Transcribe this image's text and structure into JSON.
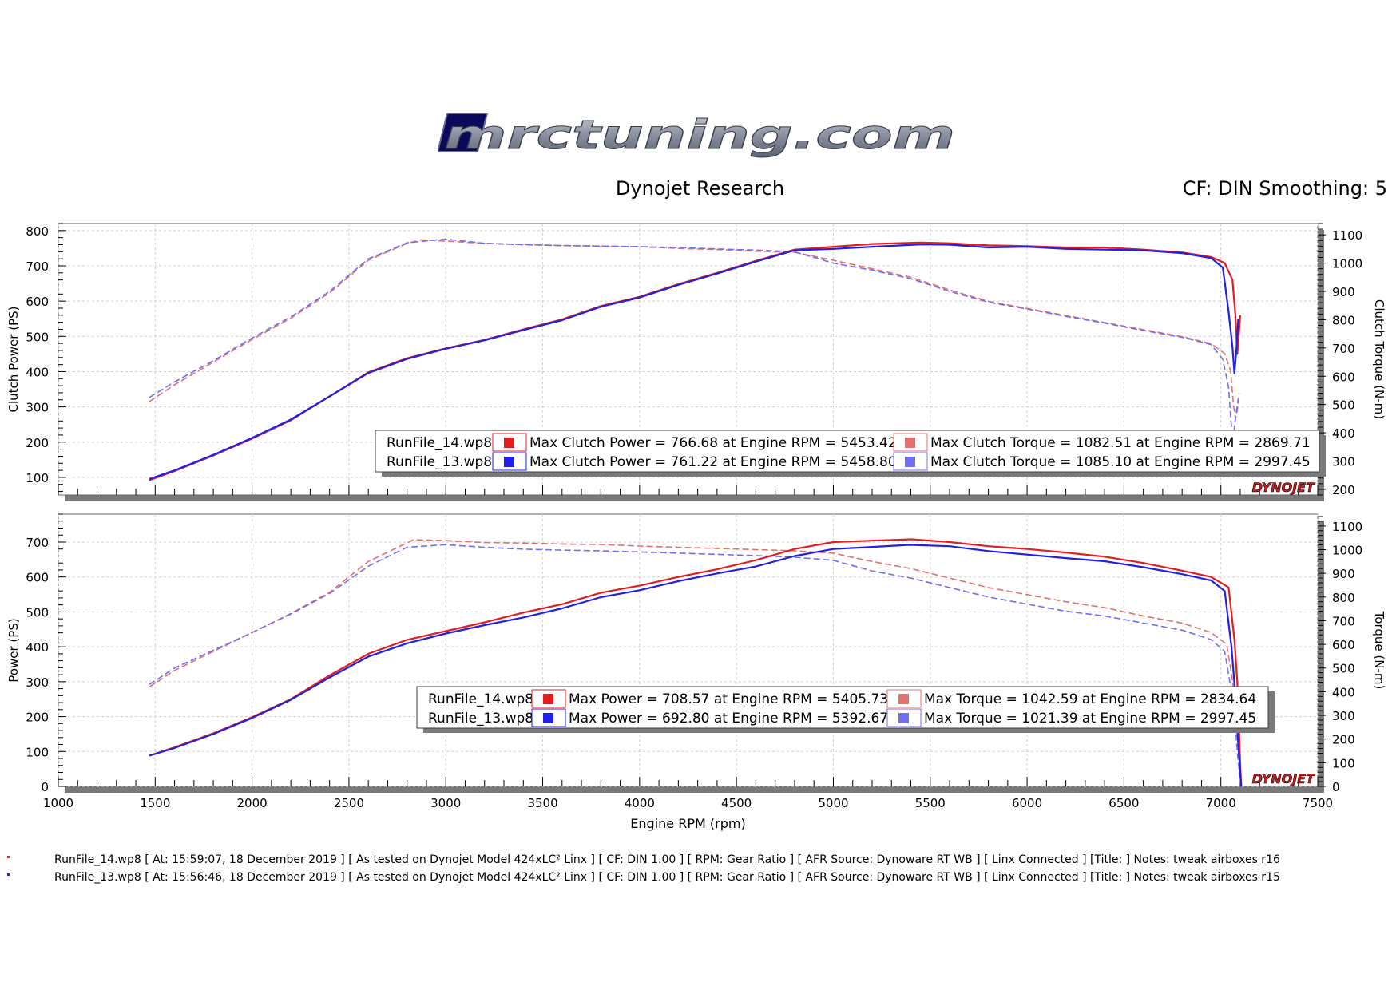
{
  "header": {
    "brand": "MRCTUNING.COM",
    "title": "Dynojet Research",
    "settings": "CF: DIN Smoothing: 5"
  },
  "colors": {
    "run14": "#e41e1e",
    "run13": "#2020e6",
    "run14_torque": "#e47070",
    "run13_torque": "#7070f0",
    "panel_shadow": "#7a7a7a"
  },
  "chart_data": [
    {
      "type": "line",
      "ylabel": "Clutch Power (PS)",
      "y2label": "Clutch Torque (N-m)",
      "xlim": [
        1000,
        7500
      ],
      "ylim": [
        50,
        820
      ],
      "y2lim": [
        180,
        1140
      ],
      "yticks": [
        100,
        200,
        300,
        400,
        500,
        600,
        700,
        800
      ],
      "y2ticks": [
        200,
        300,
        400,
        500,
        600,
        700,
        800,
        900,
        1000,
        1100
      ],
      "series": [
        {
          "name": "RunFile_14.wp8",
          "quantity": "power",
          "axis": "left",
          "color": "#e41e1e",
          "dash": false,
          "x": [
            1470,
            1600,
            1800,
            2000,
            2200,
            2400,
            2600,
            2800,
            3000,
            3200,
            3400,
            3600,
            3800,
            4000,
            4200,
            4400,
            4600,
            4800,
            5000,
            5200,
            5453,
            5600,
            5800,
            6000,
            6200,
            6400,
            6600,
            6800,
            6950,
            7020,
            7060,
            7075,
            7085,
            7095,
            7100
          ],
          "y": [
            92,
            118,
            162,
            210,
            262,
            330,
            398,
            438,
            466,
            490,
            520,
            548,
            586,
            612,
            648,
            680,
            714,
            746,
            754,
            762,
            766,
            764,
            758,
            756,
            752,
            752,
            746,
            738,
            725,
            708,
            660,
            560,
            450,
            520,
            560
          ]
        },
        {
          "name": "RunFile_13.wp8",
          "quantity": "power",
          "axis": "left",
          "color": "#2020e6",
          "dash": false,
          "x": [
            1470,
            1600,
            1800,
            2000,
            2200,
            2400,
            2600,
            2800,
            3000,
            3200,
            3400,
            3600,
            3800,
            4000,
            4200,
            4400,
            4600,
            4800,
            5000,
            5200,
            5458,
            5600,
            5800,
            6000,
            6200,
            6400,
            6600,
            6800,
            6950,
            7010,
            7040,
            7060,
            7070,
            7080,
            7090
          ],
          "y": [
            95,
            120,
            164,
            212,
            264,
            330,
            396,
            436,
            465,
            489,
            518,
            546,
            584,
            610,
            646,
            678,
            712,
            744,
            748,
            754,
            761,
            760,
            752,
            754,
            748,
            746,
            744,
            736,
            722,
            695,
            570,
            470,
            395,
            460,
            550
          ]
        },
        {
          "name": "RunFile_14.wp8",
          "quantity": "torque",
          "axis": "right",
          "color": "#e47070",
          "dash": true,
          "x": [
            1470,
            1600,
            1800,
            2000,
            2200,
            2400,
            2600,
            2800,
            2870,
            3000,
            3200,
            3400,
            3600,
            3800,
            4000,
            4200,
            4400,
            4600,
            4800,
            5000,
            5200,
            5400,
            5600,
            5800,
            6000,
            6200,
            6400,
            6600,
            6800,
            6950,
            7020,
            7050,
            7065,
            7075,
            7085,
            7095
          ],
          "y": [
            510,
            570,
            650,
            730,
            805,
            895,
            1010,
            1070,
            1082,
            1078,
            1070,
            1066,
            1062,
            1060,
            1058,
            1052,
            1048,
            1042,
            1038,
            1010,
            980,
            950,
            905,
            865,
            840,
            815,
            790,
            765,
            740,
            715,
            680,
            620,
            500,
            450,
            480,
            540
          ]
        },
        {
          "name": "RunFile_13.wp8",
          "quantity": "torque",
          "axis": "right",
          "color": "#7070f0",
          "dash": true,
          "x": [
            1470,
            1600,
            1800,
            2000,
            2200,
            2400,
            2600,
            2800,
            2997,
            3200,
            3400,
            3600,
            3800,
            4000,
            4200,
            4400,
            4600,
            4800,
            5000,
            5200,
            5400,
            5600,
            5800,
            6000,
            6200,
            6400,
            6600,
            6800,
            6950,
            7010,
            7040,
            7055,
            7065,
            7075,
            7090
          ],
          "y": [
            525,
            580,
            655,
            735,
            810,
            900,
            1015,
            1072,
            1085,
            1070,
            1065,
            1062,
            1060,
            1058,
            1055,
            1050,
            1046,
            1040,
            1000,
            975,
            945,
            900,
            862,
            838,
            812,
            788,
            762,
            738,
            712,
            660,
            560,
            420,
            390,
            450,
            520
          ]
        }
      ],
      "legend": {
        "placement": "bottom-right",
        "rows": [
          {
            "file": "RunFile_14.wp8",
            "power": "Max Clutch Power = 766.68 at Engine RPM = 5453.42",
            "torque": "Max Clutch Torque = 1082.51 at Engine RPM = 2869.71"
          },
          {
            "file": "RunFile_13.wp8",
            "power": "Max Clutch Power = 761.22 at Engine RPM = 5458.80",
            "torque": "Max Clutch Torque = 1085.10 at Engine RPM = 2997.45"
          }
        ]
      },
      "watermark": "DYNOJET"
    },
    {
      "type": "line",
      "xlabel": "Engine RPM (rpm)",
      "ylabel": "Power (PS)",
      "y2label": "Torque (N-m)",
      "xlim": [
        1000,
        7500
      ],
      "ylim": [
        0,
        780
      ],
      "y2lim": [
        0,
        1150
      ],
      "xticks": [
        1000,
        1500,
        2000,
        2500,
        3000,
        3500,
        4000,
        4500,
        5000,
        5500,
        6000,
        6500,
        7000,
        7500
      ],
      "yticks": [
        0,
        100,
        200,
        300,
        400,
        500,
        600,
        700
      ],
      "y2ticks": [
        0,
        100,
        200,
        300,
        400,
        500,
        600,
        700,
        800,
        900,
        1000,
        1100
      ],
      "series": [
        {
          "name": "RunFile_14.wp8",
          "quantity": "power",
          "axis": "left",
          "color": "#e41e1e",
          "dash": false,
          "x": [
            1470,
            1600,
            1800,
            2000,
            2200,
            2400,
            2600,
            2800,
            3000,
            3200,
            3400,
            3600,
            3800,
            4000,
            4200,
            4400,
            4600,
            4800,
            5000,
            5200,
            5405,
            5600,
            5800,
            6000,
            6200,
            6400,
            6600,
            6800,
            6950,
            7040,
            7070,
            7085,
            7095,
            7100,
            7105
          ],
          "y": [
            88,
            112,
            152,
            198,
            250,
            318,
            380,
            420,
            445,
            470,
            498,
            522,
            555,
            575,
            600,
            622,
            648,
            680,
            700,
            704,
            708,
            700,
            688,
            680,
            670,
            658,
            640,
            618,
            600,
            570,
            420,
            300,
            150,
            60,
            0
          ]
        },
        {
          "name": "RunFile_13.wp8",
          "quantity": "power",
          "axis": "left",
          "color": "#2020e6",
          "dash": false,
          "x": [
            1470,
            1600,
            1800,
            2000,
            2200,
            2400,
            2600,
            2800,
            3000,
            3200,
            3400,
            3600,
            3800,
            4000,
            4200,
            4400,
            4600,
            4800,
            5000,
            5200,
            5392,
            5600,
            5800,
            6000,
            6200,
            6400,
            6600,
            6800,
            6950,
            7020,
            7055,
            7075,
            7090,
            7100,
            7105
          ],
          "y": [
            88,
            110,
            150,
            196,
            248,
            312,
            372,
            410,
            438,
            462,
            484,
            510,
            542,
            562,
            588,
            610,
            630,
            660,
            680,
            686,
            692,
            688,
            674,
            664,
            654,
            645,
            628,
            608,
            590,
            560,
            400,
            260,
            120,
            40,
            0
          ]
        },
        {
          "name": "RunFile_14.wp8",
          "quantity": "torque",
          "axis": "right",
          "color": "#e47070",
          "dash": true,
          "x": [
            1470,
            1600,
            1800,
            2000,
            2200,
            2400,
            2600,
            2834,
            3000,
            3200,
            3400,
            3600,
            3800,
            4000,
            4200,
            4400,
            4600,
            4800,
            5000,
            5200,
            5400,
            5600,
            5800,
            6000,
            6200,
            6400,
            6600,
            6800,
            6950,
            7030,
            7060,
            7080,
            7095,
            7105
          ],
          "y": [
            420,
            490,
            570,
            650,
            730,
            820,
            950,
            1042,
            1038,
            1030,
            1028,
            1024,
            1022,
            1015,
            1010,
            1005,
            1000,
            995,
            985,
            950,
            920,
            880,
            840,
            810,
            780,
            755,
            720,
            690,
            650,
            600,
            450,
            300,
            120,
            0
          ]
        },
        {
          "name": "RunFile_13.wp8",
          "quantity": "torque",
          "axis": "right",
          "color": "#7070f0",
          "dash": true,
          "x": [
            1470,
            1600,
            1800,
            2000,
            2200,
            2400,
            2600,
            2800,
            2997,
            3200,
            3400,
            3600,
            3800,
            4000,
            4200,
            4400,
            4600,
            4800,
            5000,
            5200,
            5400,
            5600,
            5800,
            6000,
            6200,
            6400,
            6600,
            6800,
            6950,
            7020,
            7055,
            7075,
            7090,
            7105
          ],
          "y": [
            430,
            500,
            575,
            650,
            728,
            815,
            930,
            1010,
            1021,
            1010,
            1002,
            998,
            995,
            990,
            985,
            980,
            975,
            968,
            955,
            910,
            880,
            840,
            800,
            770,
            740,
            720,
            690,
            660,
            620,
            570,
            400,
            250,
            100,
            0
          ]
        }
      ],
      "legend": {
        "placement": "bottom-right",
        "rows": [
          {
            "file": "RunFile_14.wp8",
            "power": "Max Power = 708.57 at Engine RPM = 5405.73",
            "torque": "Max Torque = 1042.59 at Engine RPM = 2834.64"
          },
          {
            "file": "RunFile_13.wp8",
            "power": "Max Power = 692.80 at Engine RPM = 5392.67",
            "torque": "Max Torque = 1021.39 at Engine RPM = 2997.45"
          }
        ]
      },
      "watermark": "DYNOJET"
    }
  ],
  "footnotes": [
    "RunFile_14.wp8 [ At: 15:59:07, 18 December 2019 ] [ As tested on Dynojet Model 424xLC² Linx ] [ CF: DIN 1.00 ] [ RPM: Gear Ratio ] [ AFR Source: Dynoware RT WB ] [ Linx Connected ] [Title: ]  Notes: tweak airboxes r16",
    "RunFile_13.wp8 [ At: 15:56:46, 18 December 2019 ] [ As tested on Dynojet Model 424xLC² Linx ] [ CF: DIN 1.00 ] [ RPM: Gear Ratio ] [ AFR Source: Dynoware RT WB ] [ Linx Connected ] [Title: ]  Notes: tweak airboxes r15"
  ]
}
